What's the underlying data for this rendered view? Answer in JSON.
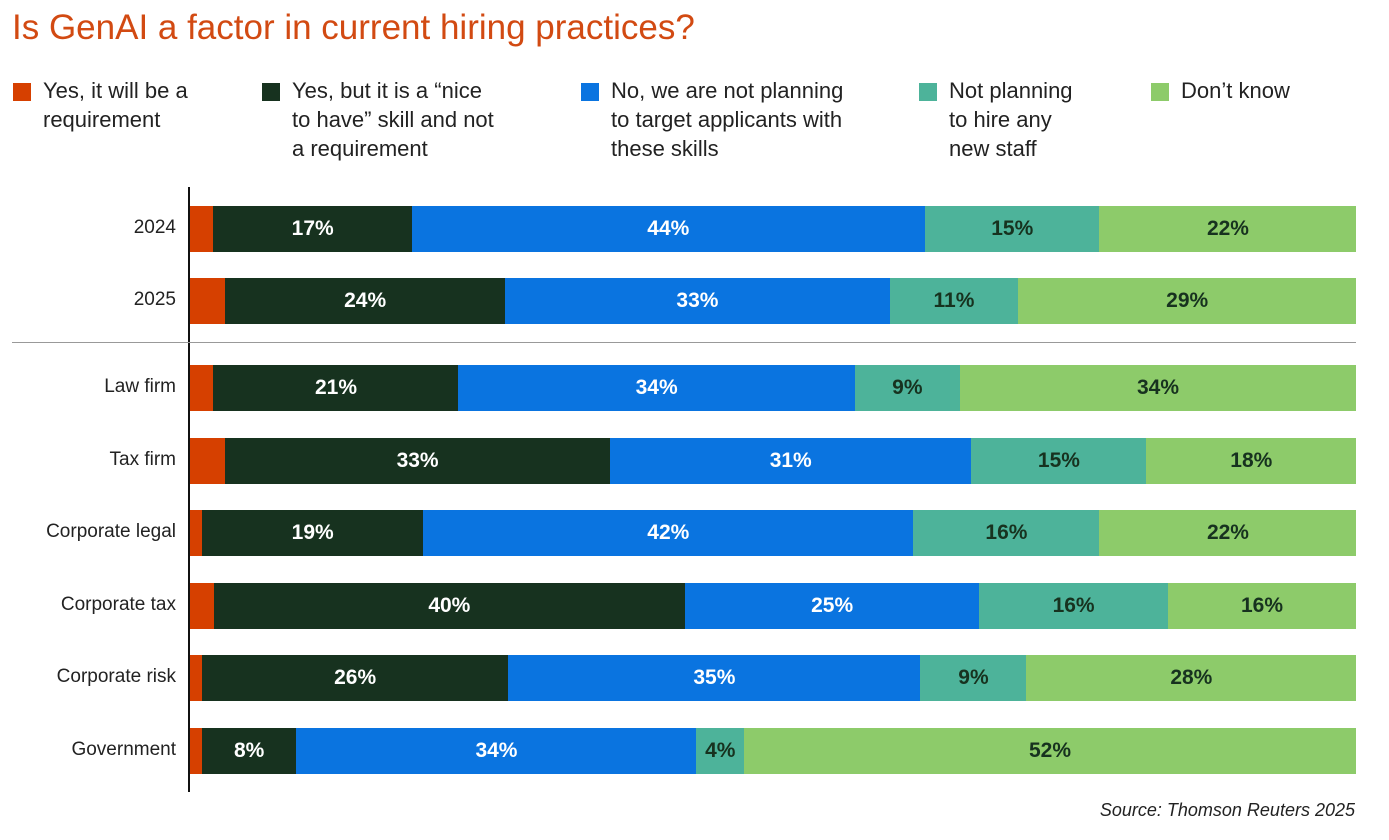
{
  "chart_data": {
    "type": "bar",
    "orientation": "horizontal-stacked",
    "title": "Is GenAI a factor in current hiring practices?",
    "source": "Source: Thomson Reuters 2025",
    "categories": [
      "2024",
      "2025",
      "Law firm",
      "Tax firm",
      "Corporate legal",
      "Corporate tax",
      "Corporate risk",
      "Government"
    ],
    "series": [
      {
        "name": "Yes, it will be a requirement",
        "color": "#D64000",
        "text": "#ffffff",
        "show_labels": false,
        "values": [
          2,
          3,
          2,
          3,
          1,
          2,
          1,
          1
        ]
      },
      {
        "name": "Yes, but it is a “nice to have” skill and not a requirement",
        "color": "#17321F",
        "text": "#ffffff",
        "show_labels": true,
        "values": [
          17,
          24,
          21,
          33,
          19,
          40,
          26,
          8
        ]
      },
      {
        "name": "No, we are not planning to target applicants with these skills",
        "color": "#0A74E0",
        "text": "#ffffff",
        "show_labels": true,
        "values": [
          44,
          33,
          34,
          31,
          42,
          25,
          35,
          34
        ]
      },
      {
        "name": "Not planning to hire any new staff",
        "color": "#4DB39A",
        "text": "#17321F",
        "show_labels": true,
        "values": [
          15,
          11,
          9,
          15,
          16,
          16,
          9,
          4
        ]
      },
      {
        "name": "Don’t know",
        "color": "#8DCB6A",
        "text": "#17321F",
        "show_labels": true,
        "values": [
          22,
          29,
          34,
          18,
          22,
          16,
          28,
          52
        ]
      }
    ],
    "legend_position": "top",
    "xlim": [
      0,
      100
    ],
    "grid": false
  },
  "legend_lines": [
    [
      "Yes, it will be a",
      "requirement"
    ],
    [
      "Yes, but it is a “nice",
      "to have” skill and not",
      "a requirement"
    ],
    [
      "No, we are not planning",
      "to target applicants with",
      "these skills"
    ],
    [
      "Not planning",
      "to hire any",
      "new staff"
    ],
    [
      "Don’t know"
    ]
  ]
}
